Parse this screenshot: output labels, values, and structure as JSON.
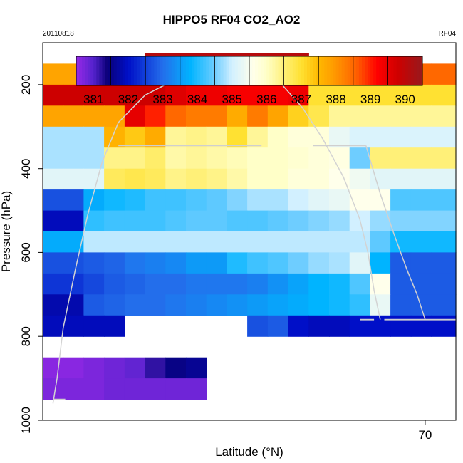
{
  "chart_data": {
    "type": "heatmap",
    "title": "HIPPO5 RF04 CO2_AO2",
    "date_label": "20110818",
    "flight_label": "RF04",
    "xlabel": "Latitude (°N)",
    "ylabel": "Pressure (hPa)",
    "xlim": [
      51.3,
      71.5
    ],
    "ylim": [
      1000,
      100
    ],
    "x_ticks": [
      {
        "value": 70,
        "label": "70"
      }
    ],
    "y_ticks": [
      {
        "value": 200,
        "label": "200"
      },
      {
        "value": 400,
        "label": "400"
      },
      {
        "value": 600,
        "label": "600"
      },
      {
        "value": 800,
        "label": "800"
      },
      {
        "value": 1000,
        "label": "1000"
      }
    ],
    "colorbar": {
      "min": 380.5,
      "max": 390.5,
      "ticks": [
        "381",
        "382",
        "383",
        "384",
        "385",
        "386",
        "387",
        "388",
        "389",
        "390"
      ]
    },
    "x_edges": [
      51.3,
      52.3,
      53.3,
      54.3,
      55.3,
      56.3,
      57.3,
      58.3,
      59.3,
      60.3,
      61.3,
      62.3,
      63.3,
      64.3,
      65.3,
      66.3,
      67.3,
      68.3,
      69.3,
      70.3,
      71.5
    ],
    "p_levels": [
      {
        "p": 150,
        "cells": [
          null,
          null,
          null,
          null,
          null,
          390.1,
          390.1,
          390.1,
          390.1,
          390.1,
          390.1,
          390.1,
          390.1,
          null,
          null,
          null,
          null,
          null,
          null,
          null
        ]
      },
      {
        "p": 175,
        "cells": [
          387.8,
          387.8,
          387.8,
          387.8,
          387.8,
          390.0,
          390.0,
          390.0,
          390.0,
          390.0,
          390.1,
          390.2,
          390.2,
          388.5,
          388.5,
          388.5,
          388.5,
          388.5,
          388.5,
          388.5
        ]
      },
      {
        "p": 225,
        "cells": [
          389.8,
          389.8,
          389.8,
          389.8,
          389.8,
          389.8,
          389.6,
          389.4,
          389.4,
          389.3,
          389.3,
          389.3,
          389.4,
          387.0,
          387.0,
          387.0,
          387.0,
          387.0,
          387.0,
          387.0
        ]
      },
      {
        "p": 275,
        "cells": [
          387.8,
          387.8,
          387.8,
          387.8,
          389.5,
          389.0,
          388.5,
          388.3,
          388.3,
          387.7,
          388.3,
          387.8,
          387.2,
          386.8,
          386.3,
          386.3,
          386.3,
          386.3,
          386.3,
          386.3
        ]
      },
      {
        "p": 325,
        "cells": [
          384.8,
          384.8,
          384.8,
          387.6,
          387.3,
          387.7,
          386.3,
          386.4,
          386.3,
          387.0,
          386.3,
          386.0,
          385.8,
          385.8,
          385.3,
          385.1,
          385.1,
          385.1,
          385.1,
          385.1
        ]
      },
      {
        "p": 375,
        "cells": [
          384.8,
          384.8,
          384.8,
          386.4,
          386.4,
          386.6,
          386.2,
          386.3,
          386.2,
          386.1,
          386.0,
          386.0,
          385.9,
          385.8,
          385.7,
          384.5,
          386.5,
          386.5,
          386.5,
          386.5
        ]
      },
      {
        "p": 425,
        "cells": [
          385.2,
          385.2,
          385.2,
          386.7,
          386.8,
          386.7,
          386.4,
          386.5,
          386.4,
          386.2,
          386.0,
          386.0,
          385.8,
          385.8,
          385.6,
          385.4,
          385.2,
          385.2,
          385.2,
          385.2
        ]
      },
      {
        "p": 475,
        "cells": [
          382.7,
          382.7,
          383.7,
          383.9,
          384.0,
          384.2,
          384.2,
          384.3,
          384.4,
          384.6,
          384.8,
          384.8,
          385.0,
          385.2,
          385.3,
          385.6,
          385.6,
          384.3,
          384.3,
          384.3
        ]
      },
      {
        "p": 525,
        "cells": [
          381.9,
          381.9,
          384.1,
          384.2,
          384.2,
          384.2,
          384.3,
          384.4,
          384.4,
          384.3,
          384.3,
          384.4,
          384.5,
          384.6,
          384.7,
          385.0,
          384.7,
          384.6,
          384.6,
          384.6
        ]
      },
      {
        "p": 575,
        "cells": [
          383.7,
          383.7,
          384.9,
          384.9,
          384.9,
          384.9,
          384.9,
          384.9,
          384.9,
          384.9,
          384.9,
          384.9,
          384.9,
          384.9,
          384.9,
          384.9,
          384.4,
          383.9,
          383.9,
          383.9
        ]
      },
      {
        "p": 625,
        "cells": [
          382.7,
          382.7,
          382.8,
          382.9,
          383.1,
          383.2,
          383.3,
          383.5,
          383.5,
          384.0,
          384.2,
          384.3,
          384.5,
          384.7,
          384.8,
          385.2,
          383.8,
          382.8,
          382.8,
          382.8
        ]
      },
      {
        "p": 675,
        "cells": [
          382.4,
          382.4,
          382.6,
          382.8,
          382.9,
          383.0,
          383.0,
          383.1,
          383.1,
          383.1,
          383.2,
          383.4,
          383.6,
          383.8,
          383.9,
          384.3,
          385.6,
          382.8,
          382.8,
          382.8
        ]
      },
      {
        "p": 725,
        "cells": [
          381.8,
          381.8,
          382.8,
          382.9,
          383.0,
          383.0,
          383.1,
          383.2,
          383.3,
          383.4,
          383.5,
          383.6,
          383.7,
          383.8,
          383.9,
          384.1,
          385.3,
          382.8,
          382.8,
          382.8
        ]
      },
      {
        "p": 775,
        "cells": [
          381.9,
          381.9,
          381.9,
          381.9,
          null,
          null,
          null,
          null,
          null,
          null,
          382.7,
          382.8,
          382.0,
          381.9,
          381.9,
          382.0,
          382.0,
          382.0,
          382.0,
          382.0
        ]
      },
      {
        "p": 875,
        "cells": [
          380.6,
          380.6,
          380.7,
          380.8,
          380.9,
          381.2,
          381.5,
          381.6,
          null,
          null,
          null,
          null,
          null,
          null,
          null,
          null,
          null,
          null,
          null,
          null
        ]
      },
      {
        "p": 925,
        "cells": [
          380.7,
          380.7,
          380.7,
          380.8,
          380.8,
          380.8,
          380.8,
          380.8,
          null,
          null,
          null,
          null,
          null,
          null,
          null,
          null,
          null,
          null,
          null,
          null
        ]
      }
    ],
    "flight_track": [
      {
        "lat": 51.8,
        "p": 960
      },
      {
        "lat": 51.9,
        "p": 930
      },
      {
        "lat": 52.0,
        "p": 900
      },
      {
        "lat": 52.3,
        "p": 780
      },
      {
        "lat": 52.9,
        "p": 640
      },
      {
        "lat": 53.5,
        "p": 510
      },
      {
        "lat": 54.2,
        "p": 385
      },
      {
        "lat": 55.0,
        "p": 290
      },
      {
        "lat": 56.3,
        "p": 225
      },
      {
        "lat": 57.3,
        "p": 200
      },
      {
        "lat": 58.0,
        "p": 195
      },
      {
        "lat": 59.3,
        "p": 195
      },
      {
        "lat": 60.5,
        "p": 195
      },
      {
        "lat": 62.0,
        "p": 195
      },
      {
        "lat": 63.0,
        "p": 200
      },
      {
        "lat": 64.0,
        "p": 255
      },
      {
        "lat": 65.0,
        "p": 330
      },
      {
        "lat": 66.0,
        "p": 420
      },
      {
        "lat": 66.8,
        "p": 520
      },
      {
        "lat": 67.2,
        "p": 600
      },
      {
        "lat": 67.5,
        "p": 690
      },
      {
        "lat": 67.8,
        "p": 760
      }
    ],
    "level_segments": [
      {
        "lat": [
          55.0,
          57.5
        ],
        "p": 195
      },
      {
        "lat": [
          55.0,
          62.0
        ],
        "p": 345
      },
      {
        "lat": [
          61.5,
          62.0
        ],
        "p": 195
      },
      {
        "lat": [
          64.5,
          67.1
        ],
        "p": 345
      },
      {
        "lat": [
          66.8,
          67.5
        ],
        "p": 760
      },
      {
        "lat": [
          68.0,
          71.5
        ],
        "p": 760
      },
      {
        "lat": [
          51.8,
          52.4
        ],
        "p": 950
      }
    ],
    "descent_track": [
      {
        "lat": 67.1,
        "p": 345
      },
      {
        "lat": 67.8,
        "p": 460
      },
      {
        "lat": 68.5,
        "p": 560
      },
      {
        "lat": 69.1,
        "p": 640
      },
      {
        "lat": 69.6,
        "p": 700
      },
      {
        "lat": 70.0,
        "p": 760
      }
    ]
  }
}
